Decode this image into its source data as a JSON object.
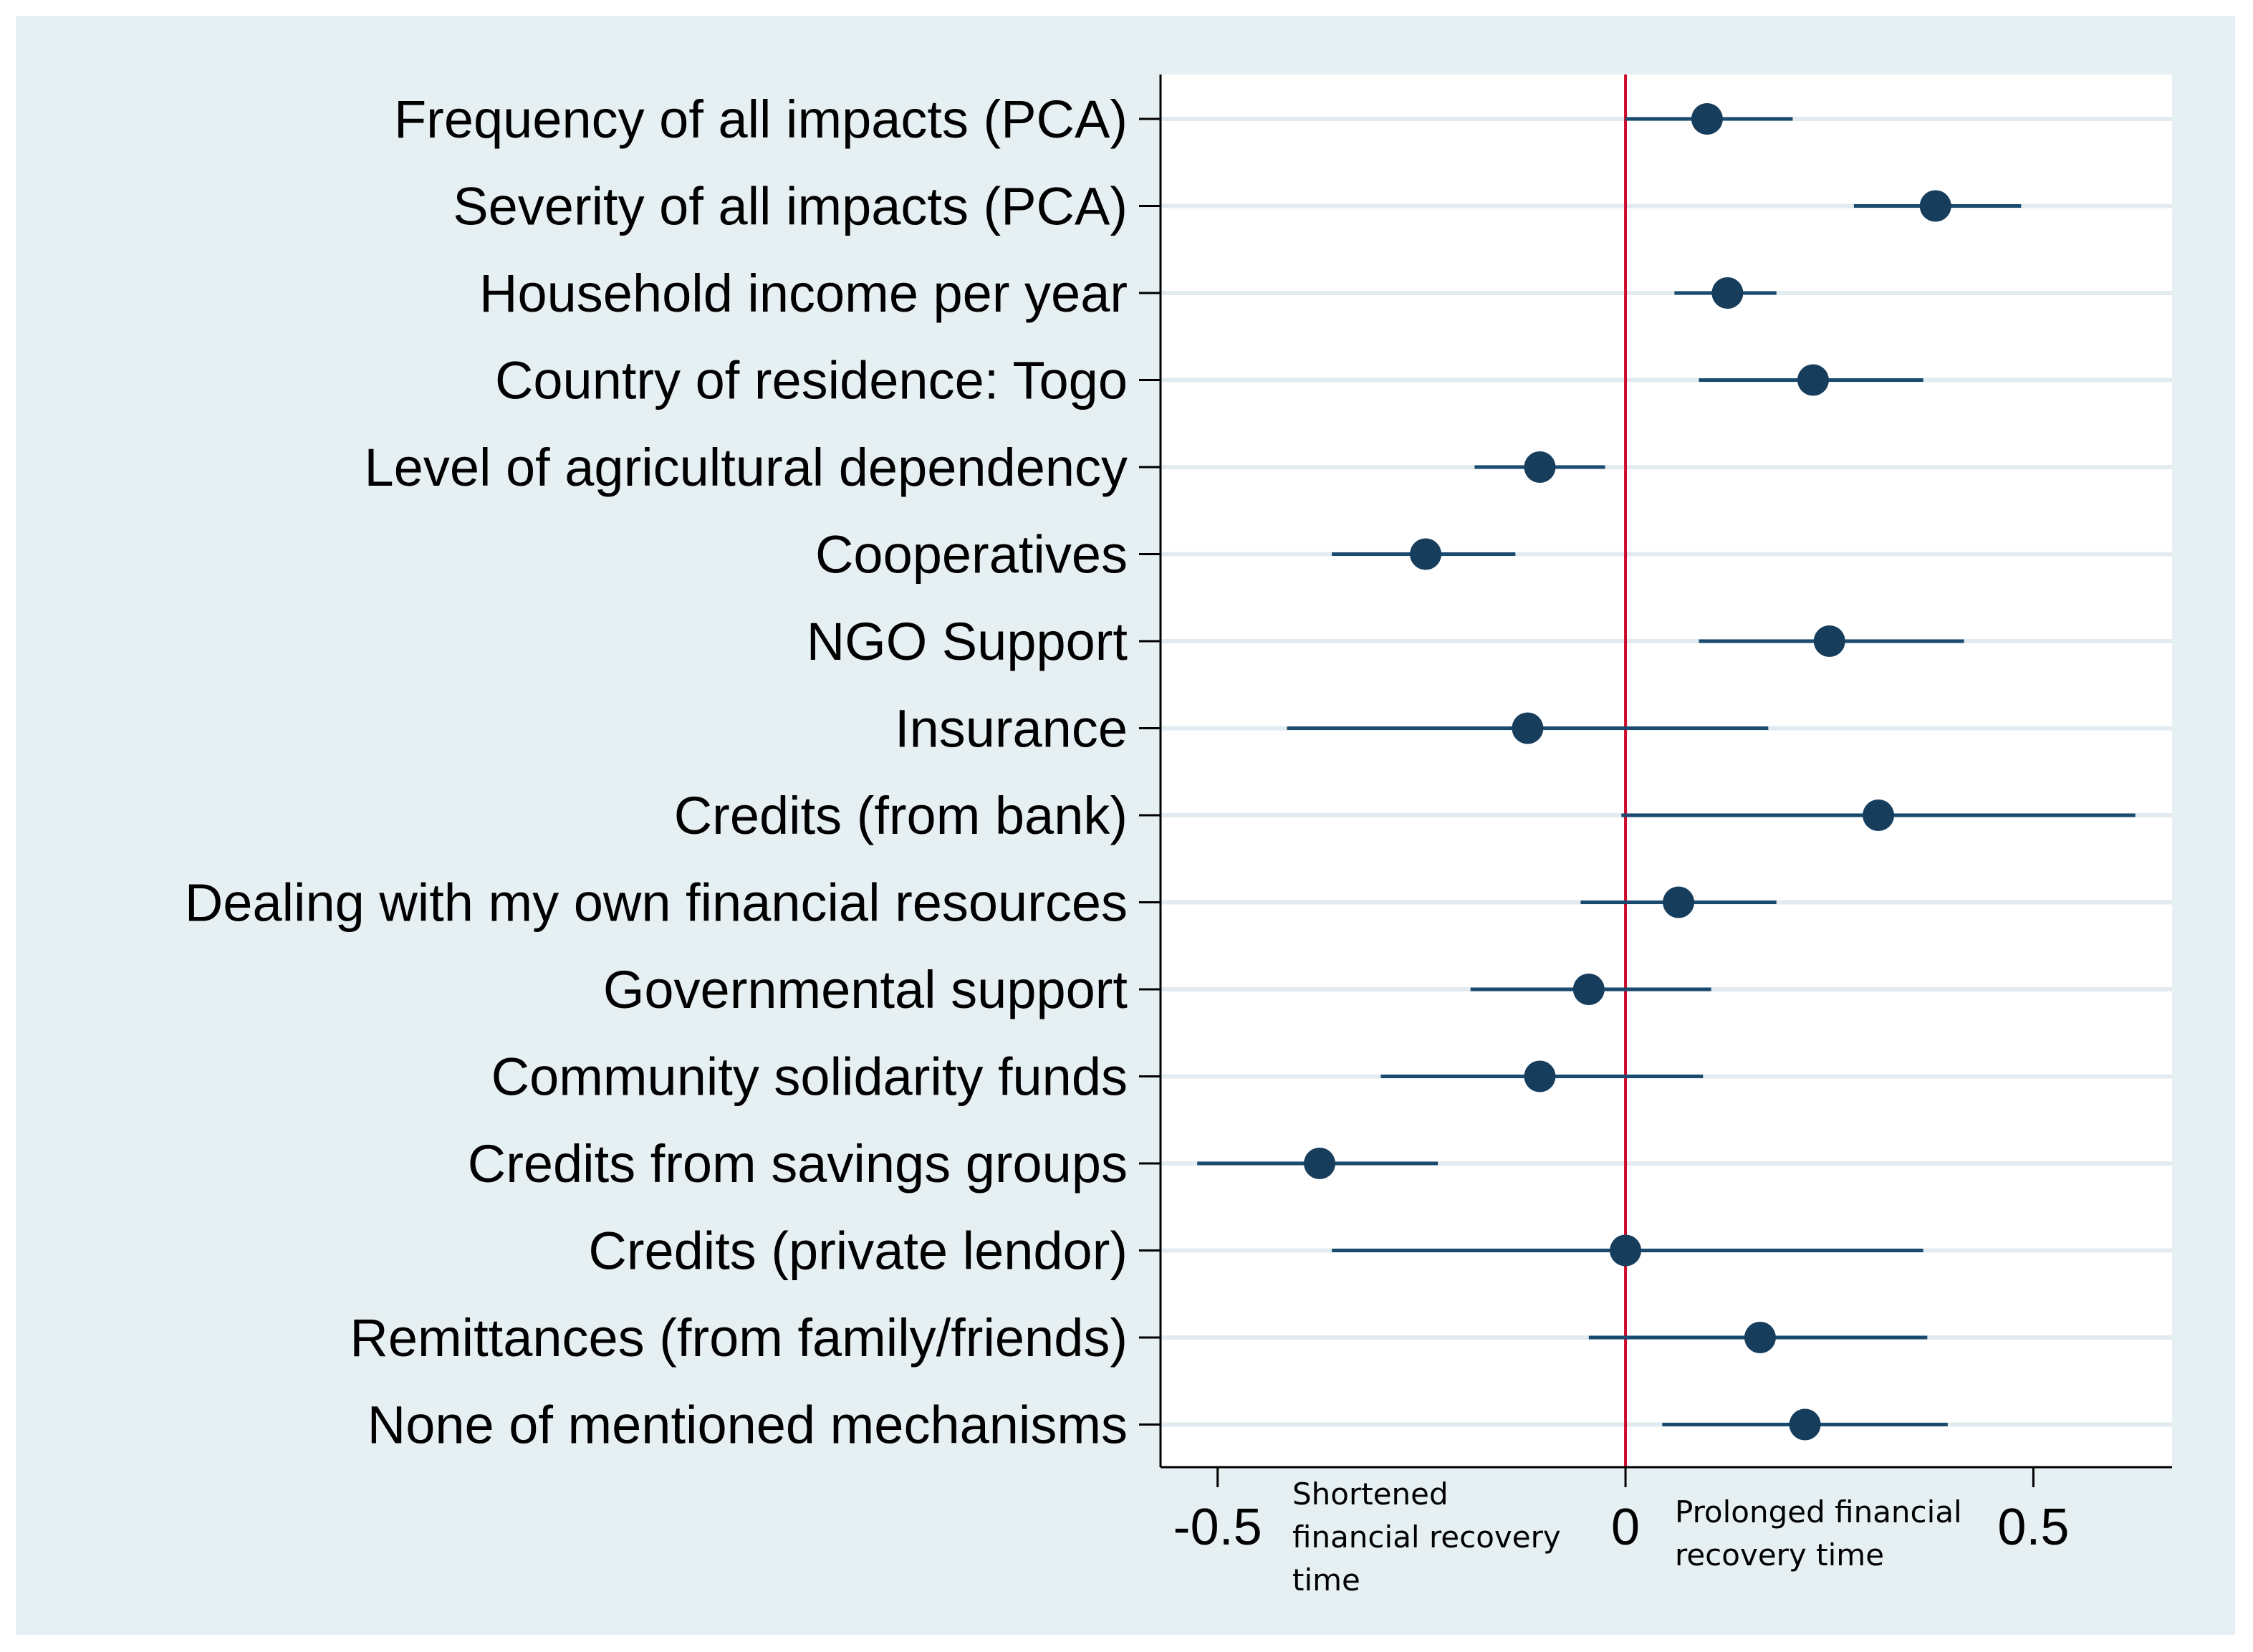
{
  "chart_data": {
    "type": "scatter",
    "style": "coefficient plot with confidence intervals",
    "categories": [
      "Frequency of all impacts (PCA)",
      "Severity of all impacts (PCA)",
      "Household income per year",
      "Country of residence: Togo",
      "Level of agricultural dependency",
      "Cooperatives",
      "NGO Support",
      "Insurance",
      "Credits (from bank)",
      "Dealing with my own financial resources",
      "Governmental support",
      "Community solidarity funds",
      "Credits from savings groups",
      "Credits (private lendor)",
      "Remittances (from family/friends)",
      "None of mentioned mechanisms"
    ],
    "estimates": [
      0.1,
      0.38,
      0.125,
      0.23,
      -0.105,
      -0.245,
      0.25,
      -0.12,
      0.31,
      0.065,
      -0.045,
      -0.105,
      -0.375,
      0.0,
      0.165,
      0.22
    ],
    "ci_low": [
      0.0,
      0.28,
      0.06,
      0.09,
      -0.185,
      -0.36,
      0.09,
      -0.415,
      -0.005,
      -0.055,
      -0.19,
      -0.3,
      -0.525,
      -0.36,
      -0.045,
      0.045
    ],
    "ci_high": [
      0.205,
      0.485,
      0.185,
      0.365,
      -0.025,
      -0.135,
      0.415,
      0.175,
      0.625,
      0.185,
      0.105,
      0.095,
      -0.23,
      0.365,
      0.37,
      0.395
    ],
    "x_ticks": [
      "-0.5",
      "0",
      "0.5"
    ],
    "x_tick_values": [
      -0.5,
      0,
      0.5
    ],
    "xlim": [
      -0.57,
      0.67
    ],
    "reference_line": 0,
    "annotations": {
      "left": [
        "Shortened",
        "financial recovery",
        "time"
      ],
      "right": [
        "Prolonged financial",
        "recovery time"
      ]
    },
    "grid": true,
    "title": "",
    "xlabel": "",
    "ylabel": ""
  },
  "colors": {
    "outer_background": "#e6f0f2",
    "plot_background": "#ffffff",
    "grid": "#e2ebef",
    "marker": "#173d5d",
    "ci_line": "#1a4a6e",
    "reference_line": "#cc0a2b",
    "axis": "#000000"
  }
}
